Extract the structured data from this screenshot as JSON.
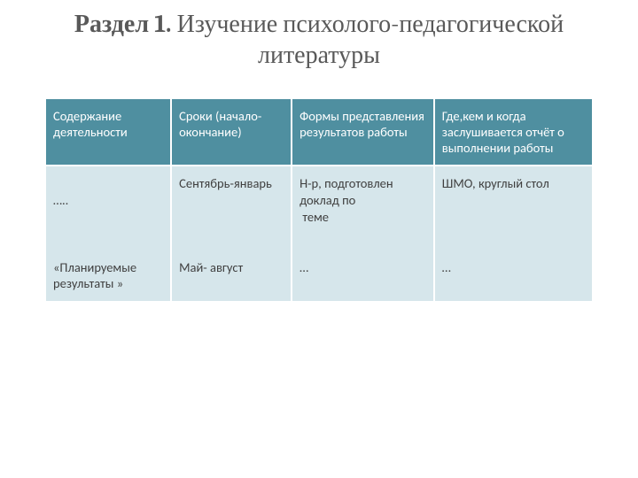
{
  "title": {
    "section_label": "Раздел 1.",
    "rest": " Изучение психолого-педагогической литературы"
  },
  "table": {
    "header_bg": "#4F8FA0",
    "header_fg": "#ffffff",
    "row1_bg": "#D6E6EB",
    "row2_bg": "#EAF2F5",
    "cell_fg": "#404040",
    "columns": [
      "Содержание деятельности",
      "Сроки (начало-окончание)",
      "Формы представления результатов работы",
      "Где,кем и когда заслушивается отчёт о выполнении работы"
    ],
    "rows": [
      [
        "\n…..\n\n\n\n«Планируемые результаты »",
        "Сентябрь-январь\n\n\n\n\nМай- август",
        "Н-р, подготовлен доклад по\n теме\n\n\n…",
        "ШМО, круглый стол\n\n\n\n\n…"
      ]
    ],
    "col_widths": [
      "23%",
      "22%",
      "26%",
      "29%"
    ]
  }
}
